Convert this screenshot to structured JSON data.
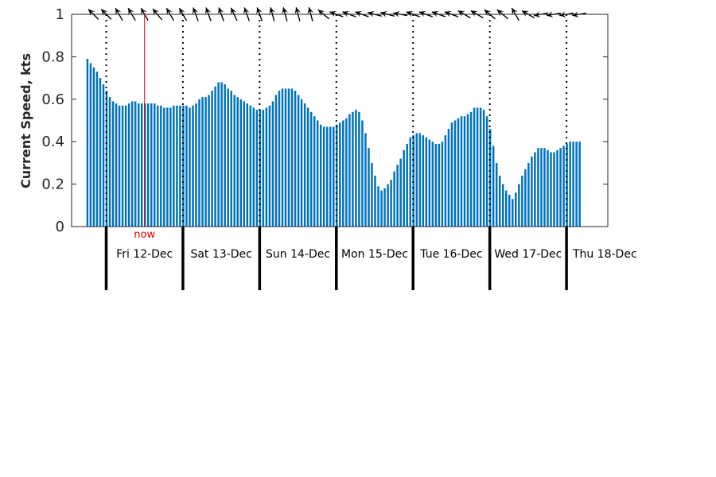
{
  "chart_data": {
    "type": "bar",
    "ylabel": "Current Speed, kts",
    "ylim": [
      0,
      1
    ],
    "yticks": [
      "0",
      "0.2",
      "0.4",
      "0.6",
      "0.8",
      "1"
    ],
    "x_start": "Thu 11-Dec 18:40",
    "interval_hours": 1,
    "days": [
      "Fri 12-Dec",
      "Sat 13-Dec",
      "Sun 14-Dec",
      "Mon 15-Dec",
      "Tue 16-Dec",
      "Wed 17-Dec",
      "Thu 18-Dec"
    ],
    "now_label": "now",
    "now_time": "Fri 12-Dec 12:00",
    "values": [
      0.79,
      0.77,
      0.75,
      0.73,
      0.7,
      0.67,
      0.64,
      0.61,
      0.59,
      0.58,
      0.57,
      0.57,
      0.57,
      0.58,
      0.59,
      0.59,
      0.58,
      0.58,
      0.58,
      0.58,
      0.58,
      0.58,
      0.57,
      0.57,
      0.56,
      0.56,
      0.56,
      0.57,
      0.57,
      0.57,
      0.57,
      0.57,
      0.56,
      0.57,
      0.58,
      0.6,
      0.61,
      0.61,
      0.62,
      0.64,
      0.66,
      0.68,
      0.68,
      0.67,
      0.65,
      0.64,
      0.62,
      0.61,
      0.6,
      0.59,
      0.58,
      0.57,
      0.56,
      0.55,
      0.55,
      0.55,
      0.56,
      0.57,
      0.59,
      0.62,
      0.64,
      0.65,
      0.65,
      0.65,
      0.65,
      0.64,
      0.62,
      0.6,
      0.58,
      0.56,
      0.54,
      0.52,
      0.5,
      0.48,
      0.47,
      0.47,
      0.47,
      0.47,
      0.48,
      0.49,
      0.5,
      0.51,
      0.53,
      0.54,
      0.55,
      0.54,
      0.5,
      0.44,
      0.37,
      0.3,
      0.24,
      0.19,
      0.17,
      0.18,
      0.2,
      0.22,
      0.26,
      0.29,
      0.32,
      0.36,
      0.39,
      0.42,
      0.43,
      0.44,
      0.44,
      0.43,
      0.42,
      0.41,
      0.4,
      0.39,
      0.39,
      0.4,
      0.43,
      0.46,
      0.49,
      0.5,
      0.51,
      0.52,
      0.52,
      0.53,
      0.54,
      0.56,
      0.56,
      0.56,
      0.55,
      0.52,
      0.46,
      0.38,
      0.3,
      0.24,
      0.2,
      0.17,
      0.15,
      0.13,
      0.16,
      0.2,
      0.24,
      0.27,
      0.3,
      0.33,
      0.35,
      0.37,
      0.37,
      0.37,
      0.36,
      0.35,
      0.35,
      0.36,
      0.37,
      0.38,
      0.39,
      0.4,
      0.4,
      0.4,
      0.4
    ],
    "direction_arrows": [
      {
        "time": "Thu 11-Dec 20:00",
        "direction_deg": 315
      },
      {
        "time": "Fri 12-Dec 00:00",
        "direction_deg": 315
      },
      {
        "time": "Fri 12-Dec 04:00",
        "direction_deg": 330
      },
      {
        "time": "Fri 12-Dec 08:00",
        "direction_deg": 330
      },
      {
        "time": "Fri 12-Dec 12:00",
        "direction_deg": 330
      },
      {
        "time": "Fri 12-Dec 16:00",
        "direction_deg": 320
      },
      {
        "time": "Fri 12-Dec 20:00",
        "direction_deg": 330
      },
      {
        "time": "Sat 13-Dec 00:00",
        "direction_deg": 330
      },
      {
        "time": "Sat 13-Dec 04:00",
        "direction_deg": 340
      },
      {
        "time": "Sat 13-Dec 08:00",
        "direction_deg": 340
      },
      {
        "time": "Sat 13-Dec 12:00",
        "direction_deg": 340
      },
      {
        "time": "Sat 13-Dec 16:00",
        "direction_deg": 335
      },
      {
        "time": "Sat 13-Dec 20:00",
        "direction_deg": 340
      },
      {
        "time": "Sun 14-Dec 00:00",
        "direction_deg": 340
      },
      {
        "time": "Sun 14-Dec 04:00",
        "direction_deg": 345
      },
      {
        "time": "Sun 14-Dec 08:00",
        "direction_deg": 345
      },
      {
        "time": "Sun 14-Dec 12:00",
        "direction_deg": 345
      },
      {
        "time": "Sun 14-Dec 16:00",
        "direction_deg": 345
      },
      {
        "time": "Sun 14-Dec 20:00",
        "direction_deg": 310
      },
      {
        "time": "Mon 15-Dec 00:00",
        "direction_deg": 290
      },
      {
        "time": "Mon 15-Dec 04:00",
        "direction_deg": 290
      },
      {
        "time": "Mon 15-Dec 08:00",
        "direction_deg": 290
      },
      {
        "time": "Mon 15-Dec 12:00",
        "direction_deg": 285
      },
      {
        "time": "Mon 15-Dec 16:00",
        "direction_deg": 285
      },
      {
        "time": "Mon 15-Dec 20:00",
        "direction_deg": 280
      },
      {
        "time": "Tue 16-Dec 00:00",
        "direction_deg": 290
      },
      {
        "time": "Tue 16-Dec 04:00",
        "direction_deg": 290
      },
      {
        "time": "Tue 16-Dec 08:00",
        "direction_deg": 290
      },
      {
        "time": "Tue 16-Dec 12:00",
        "direction_deg": 290
      },
      {
        "time": "Tue 16-Dec 16:00",
        "direction_deg": 300
      },
      {
        "time": "Tue 16-Dec 20:00",
        "direction_deg": 300
      },
      {
        "time": "Wed 17-Dec 00:00",
        "direction_deg": 310
      },
      {
        "time": "Wed 17-Dec 04:00",
        "direction_deg": 310
      },
      {
        "time": "Wed 17-Dec 08:00",
        "direction_deg": 330
      },
      {
        "time": "Wed 17-Dec 12:00",
        "direction_deg": 300
      },
      {
        "time": "Wed 17-Dec 16:00",
        "direction_deg": 260
      },
      {
        "time": "Wed 17-Dec 20:00",
        "direction_deg": 260
      },
      {
        "time": "Thu 18-Dec 00:00",
        "direction_deg": 260
      },
      {
        "time": "Thu 18-Dec 04:00",
        "direction_deg": 260
      }
    ],
    "bar_color": "#0072BD",
    "now_color": "#E60000",
    "grid": false
  }
}
